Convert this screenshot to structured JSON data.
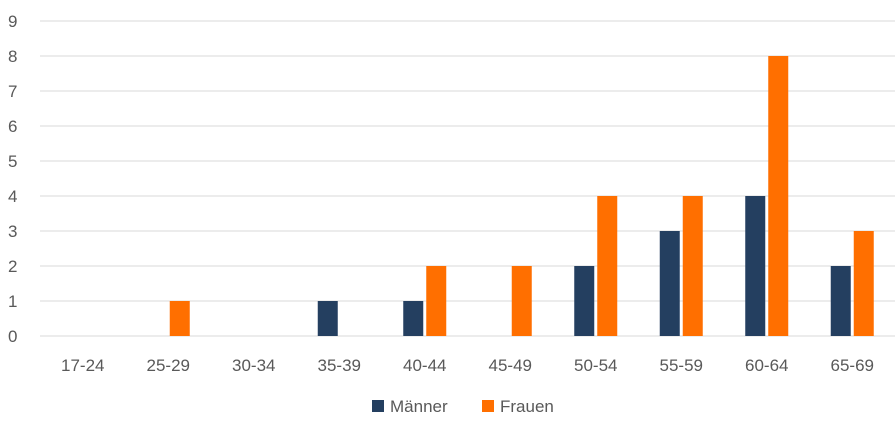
{
  "chart_data": {
    "type": "bar",
    "categories": [
      "17-24",
      "25-29",
      "30-34",
      "35-39",
      "40-44",
      "45-49",
      "50-54",
      "55-59",
      "60-64",
      "65-69"
    ],
    "series": [
      {
        "name": "Männer",
        "color": "#243f60",
        "values": [
          0,
          0,
          0,
          1,
          1,
          0,
          2,
          3,
          4,
          2
        ]
      },
      {
        "name": "Frauen",
        "color": "#ff6f00",
        "values": [
          0,
          1,
          0,
          0,
          2,
          2,
          4,
          4,
          8,
          3
        ]
      }
    ],
    "ylim": [
      0,
      9
    ],
    "yticks": [
      "0",
      "1",
      "2",
      "3",
      "4",
      "5",
      "6",
      "7",
      "8",
      "9"
    ],
    "grid": true,
    "legend_position": "bottom"
  }
}
